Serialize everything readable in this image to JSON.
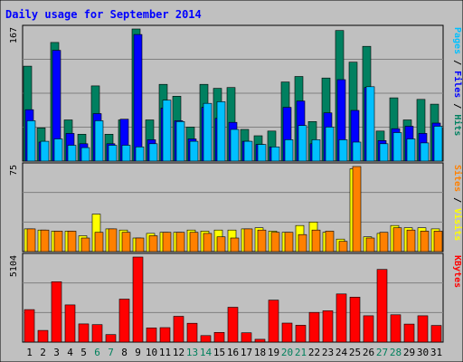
{
  "chart_data": [
    {
      "type": "bar",
      "panel": "top",
      "title": "Daily usage for September 2014",
      "ymax_label": "167",
      "ylim": [
        0,
        167
      ],
      "side_label_parts": [
        {
          "text": "Pages",
          "color": "#00c0ff"
        },
        {
          "text": " / ",
          "color": "#000000"
        },
        {
          "text": "Files",
          "color": "#0000ff"
        },
        {
          "text": " / ",
          "color": "#000000"
        },
        {
          "text": "Hits",
          "color": "#008060"
        }
      ],
      "series": [
        {
          "name": "Hits",
          "color": "#008060",
          "values": [
            120,
            42,
            150,
            52,
            34,
            95,
            34,
            52,
            167,
            52,
            97,
            82,
            43,
            97,
            92,
            93,
            40,
            32,
            38,
            100,
            107,
            50,
            105,
            165,
            125,
            145,
            38,
            80,
            52,
            78,
            72
          ]
        },
        {
          "name": "Files",
          "color": "#0000ff",
          "values": [
            65,
            24,
            140,
            35,
            22,
            60,
            22,
            53,
            160,
            27,
            67,
            51,
            28,
            68,
            54,
            49,
            25,
            21,
            18,
            68,
            76,
            22,
            61,
            103,
            64,
            93,
            26,
            41,
            44,
            35,
            48
          ]
        },
        {
          "name": "Pages",
          "color": "#00c0ff",
          "values": [
            51,
            25,
            28,
            20,
            17,
            51,
            20,
            20,
            18,
            22,
            77,
            50,
            25,
            73,
            75,
            40,
            25,
            21,
            18,
            27,
            45,
            27,
            43,
            27,
            24,
            94,
            22,
            36,
            28,
            23,
            44
          ]
        }
      ]
    },
    {
      "type": "bar",
      "panel": "middle",
      "ymax_label": "75",
      "ylim": [
        0,
        75
      ],
      "side_label_parts": [
        {
          "text": "Sites",
          "color": "#ff8000"
        },
        {
          "text": " / ",
          "color": "#000000"
        },
        {
          "text": "Visits",
          "color": "#ffff00"
        }
      ],
      "series": [
        {
          "name": "Visits",
          "color": "#ffff00",
          "values": [
            20,
            19,
            18,
            18,
            14,
            33,
            20,
            19,
            12,
            16,
            17,
            17,
            19,
            18,
            19,
            19,
            20,
            21,
            18,
            17,
            23,
            26,
            17,
            11,
            73,
            13,
            16,
            23,
            21,
            21,
            20
          ]
        },
        {
          "name": "Sites",
          "color": "#ff8000",
          "values": [
            20,
            19,
            18,
            18,
            12,
            17,
            20,
            17,
            12,
            14,
            17,
            17,
            17,
            16,
            13,
            12,
            20,
            19,
            17,
            17,
            15,
            19,
            18,
            9,
            75,
            12,
            17,
            21,
            19,
            18,
            18
          ]
        }
      ]
    },
    {
      "type": "bar",
      "panel": "bottom",
      "ymax_label": "5104",
      "ylim": [
        0,
        5104
      ],
      "side_label_parts": [
        {
          "text": "KBytes",
          "color": "#ff0000"
        }
      ],
      "series": [
        {
          "name": "KBytes",
          "color": "#ff0000",
          "values": [
            1950,
            700,
            3620,
            2230,
            1090,
            1050,
            450,
            2580,
            5104,
            850,
            870,
            1550,
            1130,
            390,
            580,
            2090,
            560,
            170,
            2520,
            1140,
            1010,
            1780,
            1880,
            2890,
            2700,
            1580,
            4360,
            1640,
            1080,
            1580,
            1000
          ]
        }
      ]
    }
  ],
  "x_axis": {
    "days": [
      "1",
      "2",
      "3",
      "4",
      "5",
      "6",
      "7",
      "8",
      "9",
      "10",
      "11",
      "12",
      "13",
      "14",
      "15",
      "16",
      "17",
      "18",
      "19",
      "20",
      "21",
      "22",
      "23",
      "24",
      "25",
      "26",
      "27",
      "28",
      "29",
      "30",
      "31"
    ],
    "weekend_days": [
      "6",
      "7",
      "13",
      "14",
      "20",
      "21",
      "27",
      "28"
    ],
    "weekday_color": "#000000",
    "weekend_color": "#00805c"
  }
}
